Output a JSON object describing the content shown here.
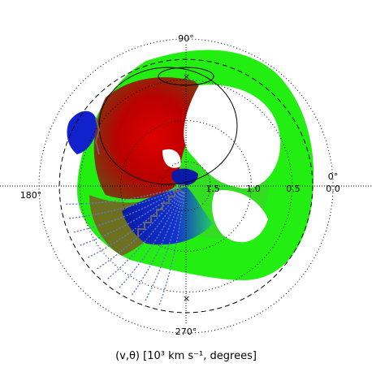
{
  "chart_data": {
    "type": "polar-map",
    "coordinates": "(v,θ)",
    "radial_axis": {
      "quantity": "v",
      "units": "10^3 km s^-1",
      "inverted": true,
      "tick_labels": [
        "1.5",
        "1.0",
        "0.5",
        "0.0"
      ]
    },
    "angle_labels": [
      "0°",
      "90°",
      "180°",
      "270°"
    ],
    "caption": "(v,θ) [10³ km s⁻¹, degrees]",
    "dotted_circles_v": [
      1.5,
      1.0,
      0.5,
      0.0
    ],
    "dashed_circle_v": 0.25,
    "colors": {
      "green": "#22ee11",
      "red": "#cc0000",
      "blue": "#0000cc",
      "grid": "#000000",
      "trace": "#6677cc"
    }
  }
}
